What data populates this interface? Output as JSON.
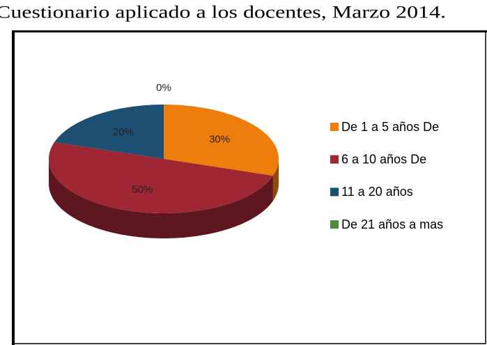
{
  "chart_data": {
    "type": "pie",
    "title": "Cuestionario aplicado a los docentes, Marzo 2014.",
    "categories": [
      "De 1 a 5 años De",
      "6 a 10 años De",
      "11 a 20 años",
      "De 21 años a mas"
    ],
    "values": [
      30,
      50,
      20,
      0
    ],
    "value_labels": [
      "30%",
      "50%",
      "20%",
      "0%"
    ],
    "colors": [
      "#ef7d0b",
      "#9e2733",
      "#1d4f73",
      "#4f8b3a"
    ],
    "legend": "right"
  }
}
